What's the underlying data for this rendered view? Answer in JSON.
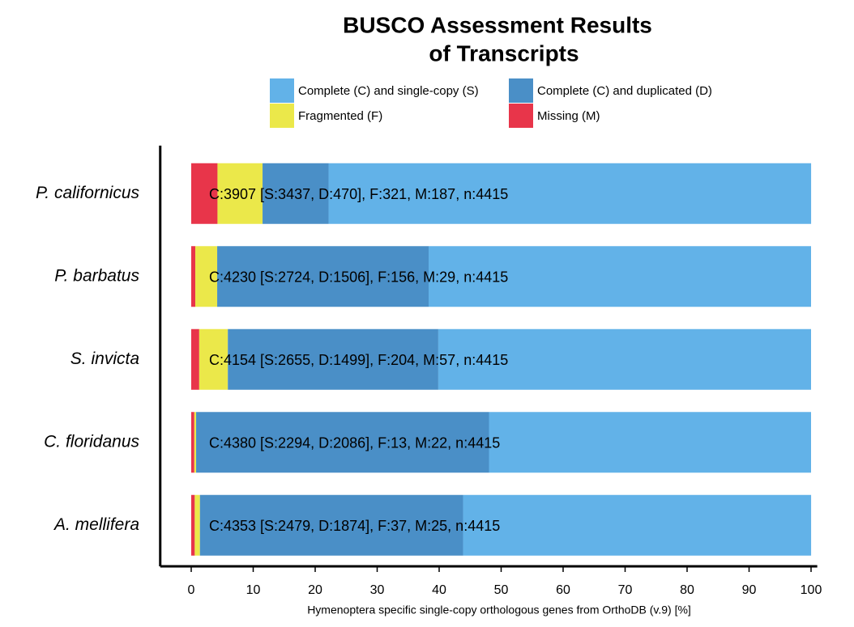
{
  "chart_data": {
    "type": "stacked_barh",
    "title": [
      "BUSCO Assessment Results",
      "of Transcripts"
    ],
    "x_label": "Hymenoptera specific single-copy orthologous genes from OrthoDB (v.9) [%]",
    "categories": [
      "P. californicus",
      "P. barbatus",
      "S. invicta",
      "C. floridanus",
      "A. mellifera"
    ],
    "series": [
      {
        "name": "Complete (C) and single-copy (S)",
        "color": "#62b2e8",
        "values": [
          77.85,
          61.7,
          60.14,
          51.96,
          56.15
        ]
      },
      {
        "name": "Complete (C) and duplicated (D)",
        "color": "#4a8fc7",
        "values": [
          10.65,
          34.11,
          33.95,
          47.25,
          42.45
        ]
      },
      {
        "name": "Fragmented (F)",
        "color": "#ebe84a",
        "values": [
          7.27,
          3.53,
          4.62,
          0.29,
          0.84
        ]
      },
      {
        "name": "Missing (M)",
        "color": "#e8354a",
        "values": [
          4.24,
          0.66,
          1.29,
          0.5,
          0.57
        ]
      }
    ],
    "annotations": [
      "C:3907 [S:3437, D:470], F:321, M:187, n:4415",
      "C:4230 [S:2724, D:1506], F:156, M:29, n:4415",
      "C:4154 [S:2655, D:1499], F:204, M:57, n:4415",
      "C:4380 [S:2294, D:2086], F:13, M:22, n:4415",
      "C:4353 [S:2479, D:1874], F:37, M:25, n:4415"
    ],
    "xlim": [
      -5,
      101
    ],
    "xticks": [
      0,
      10,
      20,
      30,
      40,
      50,
      60,
      70,
      80,
      90,
      100
    ]
  }
}
